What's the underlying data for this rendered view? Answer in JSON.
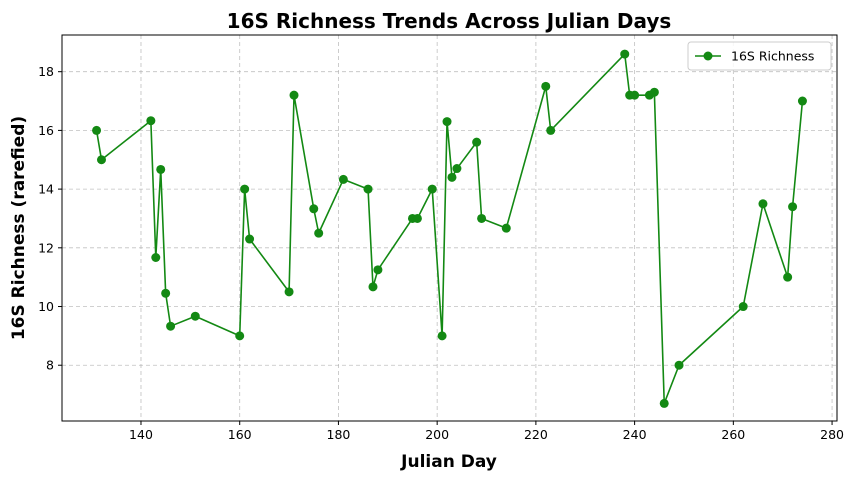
{
  "chart_data": {
    "type": "line",
    "title": "16S Richness Trends Across Julian Days",
    "xlabel": "Julian Day",
    "ylabel": "16S Richness (rarefied)",
    "xlim": [
      124,
      281
    ],
    "ylim": [
      6.1,
      19.25
    ],
    "xticks": [
      140,
      160,
      180,
      200,
      220,
      240,
      260,
      280
    ],
    "yticks": [
      8,
      10,
      12,
      14,
      16,
      18
    ],
    "grid": true,
    "legend_position": "upper right",
    "series": [
      {
        "name": "16S Richness",
        "color": "#138913",
        "marker": "circle",
        "x": [
          131,
          132,
          142,
          143,
          144,
          145,
          146,
          151,
          160,
          161,
          162,
          170,
          171,
          175,
          176,
          181,
          186,
          187,
          188,
          195,
          196,
          199,
          201,
          202,
          203,
          204,
          208,
          209,
          214,
          222,
          223,
          238,
          239,
          240,
          243,
          244,
          246,
          249,
          262,
          266,
          271,
          272,
          274
        ],
        "y": [
          16.0,
          15.0,
          16.33,
          11.67,
          14.67,
          10.45,
          9.33,
          9.67,
          9.0,
          14.0,
          12.3,
          10.5,
          17.2,
          13.33,
          12.5,
          14.33,
          14.0,
          10.67,
          11.25,
          13.0,
          13.0,
          14.0,
          9.0,
          16.3,
          14.4,
          14.7,
          15.6,
          13.0,
          12.67,
          17.5,
          16.0,
          18.6,
          17.2,
          17.2,
          17.2,
          17.3,
          6.7,
          8.0,
          10.0,
          13.5,
          11.0,
          13.4,
          17.0
        ]
      }
    ]
  }
}
